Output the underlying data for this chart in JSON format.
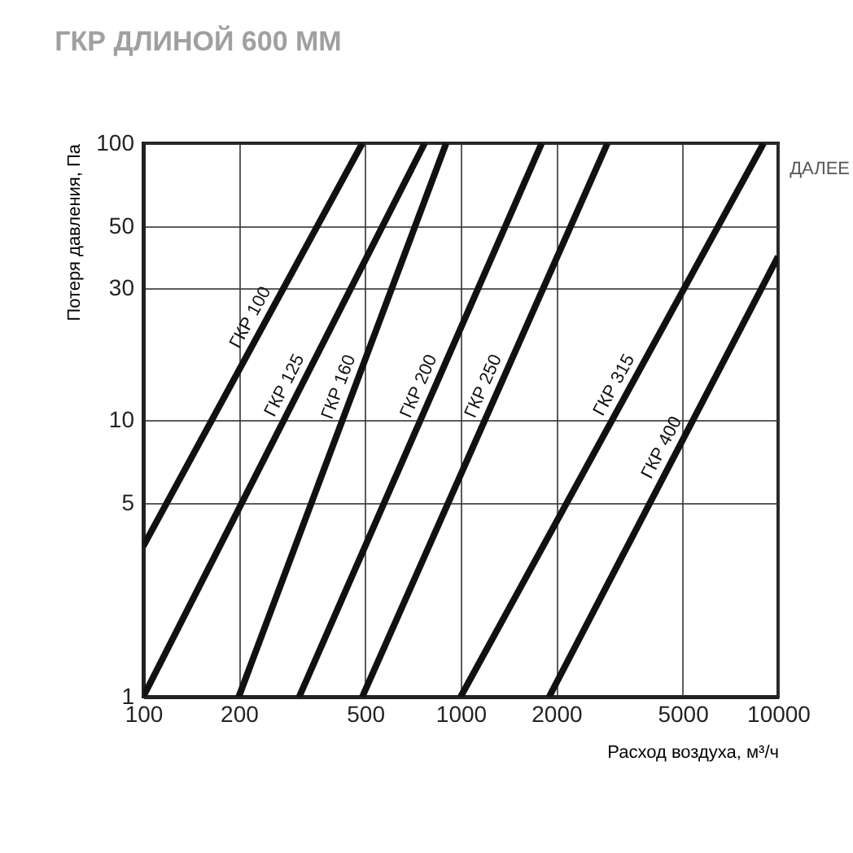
{
  "chart_data": {
    "type": "line",
    "title": "ГКР ДЛИНОЙ 600 ММ",
    "xlabel": "Расход воздуха, м³/ч",
    "ylabel": "Потеря давления, Па",
    "log": "xy",
    "grid": true,
    "xlim": [
      100,
      10000
    ],
    "ylim": [
      1,
      100
    ],
    "xticks": [
      100,
      200,
      500,
      1000,
      2000,
      5000,
      10000
    ],
    "yticks": [
      1,
      5,
      10,
      30,
      50,
      100
    ],
    "annotations": [
      "ДАЛЕЕ"
    ],
    "series": [
      {
        "name": "ГКР 100",
        "color": "#111111",
        "x": [
          100,
          490
        ],
        "values": [
          3.5,
          100
        ]
      },
      {
        "name": "ГКР 125",
        "color": "#111111",
        "x": [
          100,
          770
        ],
        "values": [
          1,
          100
        ]
      },
      {
        "name": "ГКР 160",
        "color": "#111111",
        "x": [
          200,
          900
        ],
        "values": [
          1,
          100
        ]
      },
      {
        "name": "ГКР 200",
        "color": "#111111",
        "x": [
          310,
          1800
        ],
        "values": [
          1,
          100
        ]
      },
      {
        "name": "ГКР 250",
        "color": "#111111",
        "x": [
          490,
          2900
        ],
        "values": [
          1,
          100
        ]
      },
      {
        "name": "ГКР 315",
        "color": "#111111",
        "x": [
          1000,
          9000
        ],
        "values": [
          1,
          100
        ]
      },
      {
        "name": "ГКР 400",
        "color": "#111111",
        "x": [
          1900,
          10000
        ],
        "values": [
          1,
          39
        ]
      }
    ]
  }
}
